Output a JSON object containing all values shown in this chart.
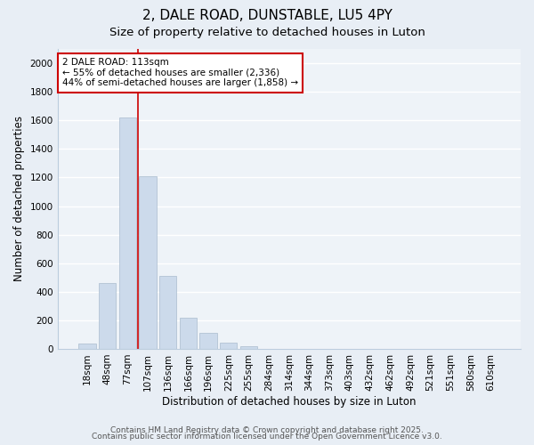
{
  "title": "2, DALE ROAD, DUNSTABLE, LU5 4PY",
  "subtitle": "Size of property relative to detached houses in Luton",
  "xlabel": "Distribution of detached houses by size in Luton",
  "ylabel": "Number of detached properties",
  "bar_labels": [
    "18sqm",
    "48sqm",
    "77sqm",
    "107sqm",
    "136sqm",
    "166sqm",
    "196sqm",
    "225sqm",
    "255sqm",
    "284sqm",
    "314sqm",
    "344sqm",
    "373sqm",
    "403sqm",
    "432sqm",
    "462sqm",
    "492sqm",
    "521sqm",
    "551sqm",
    "580sqm",
    "610sqm"
  ],
  "bar_values": [
    35,
    460,
    1620,
    1210,
    510,
    215,
    110,
    45,
    20,
    0,
    0,
    0,
    0,
    0,
    0,
    0,
    0,
    0,
    0,
    0,
    0
  ],
  "bar_color": "#ccdaeb",
  "bar_edge_color": "#aabcce",
  "vline_x": 2.5,
  "vline_color": "#cc0000",
  "annotation_title": "2 DALE ROAD: 113sqm",
  "annotation_line1": "← 55% of detached houses are smaller (2,336)",
  "annotation_line2": "44% of semi-detached houses are larger (1,858) →",
  "annotation_box_facecolor": "#ffffff",
  "annotation_border_color": "#cc0000",
  "ylim": [
    0,
    2100
  ],
  "yticks": [
    0,
    200,
    400,
    600,
    800,
    1000,
    1200,
    1400,
    1600,
    1800,
    2000
  ],
  "footer1": "Contains HM Land Registry data © Crown copyright and database right 2025.",
  "footer2": "Contains public sector information licensed under the Open Government Licence v3.0.",
  "bg_color": "#e8eef5",
  "plot_bg_color": "#eef3f8",
  "grid_color": "#ffffff",
  "title_fontsize": 11,
  "subtitle_fontsize": 9.5,
  "axis_label_fontsize": 8.5,
  "tick_fontsize": 7.5,
  "annotation_fontsize": 7.5,
  "footer_fontsize": 6.5
}
